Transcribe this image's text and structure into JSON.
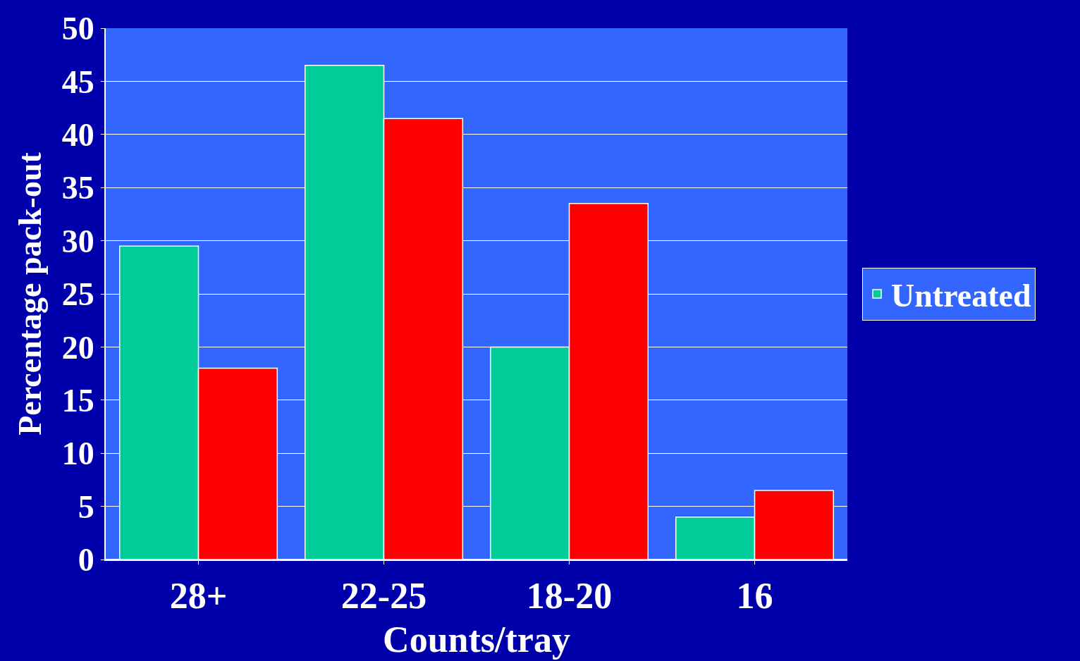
{
  "chart_data": {
    "type": "bar",
    "xlabel": "Counts/tray",
    "ylabel": "Percentage pack-out",
    "categories": [
      "28+",
      "22-25",
      "18-20",
      "16"
    ],
    "series": [
      {
        "name": "Untreated",
        "color": "#00cc99",
        "values": [
          29.5,
          46.5,
          20,
          4
        ]
      },
      {
        "color": "#ff0000",
        "values": [
          18,
          41.5,
          33.5,
          6.5
        ]
      }
    ],
    "ylim": [
      0,
      50
    ],
    "yticks": [
      0,
      5,
      10,
      15,
      20,
      25,
      30,
      35,
      40,
      45,
      50
    ],
    "grid": "y",
    "legend": "right"
  }
}
